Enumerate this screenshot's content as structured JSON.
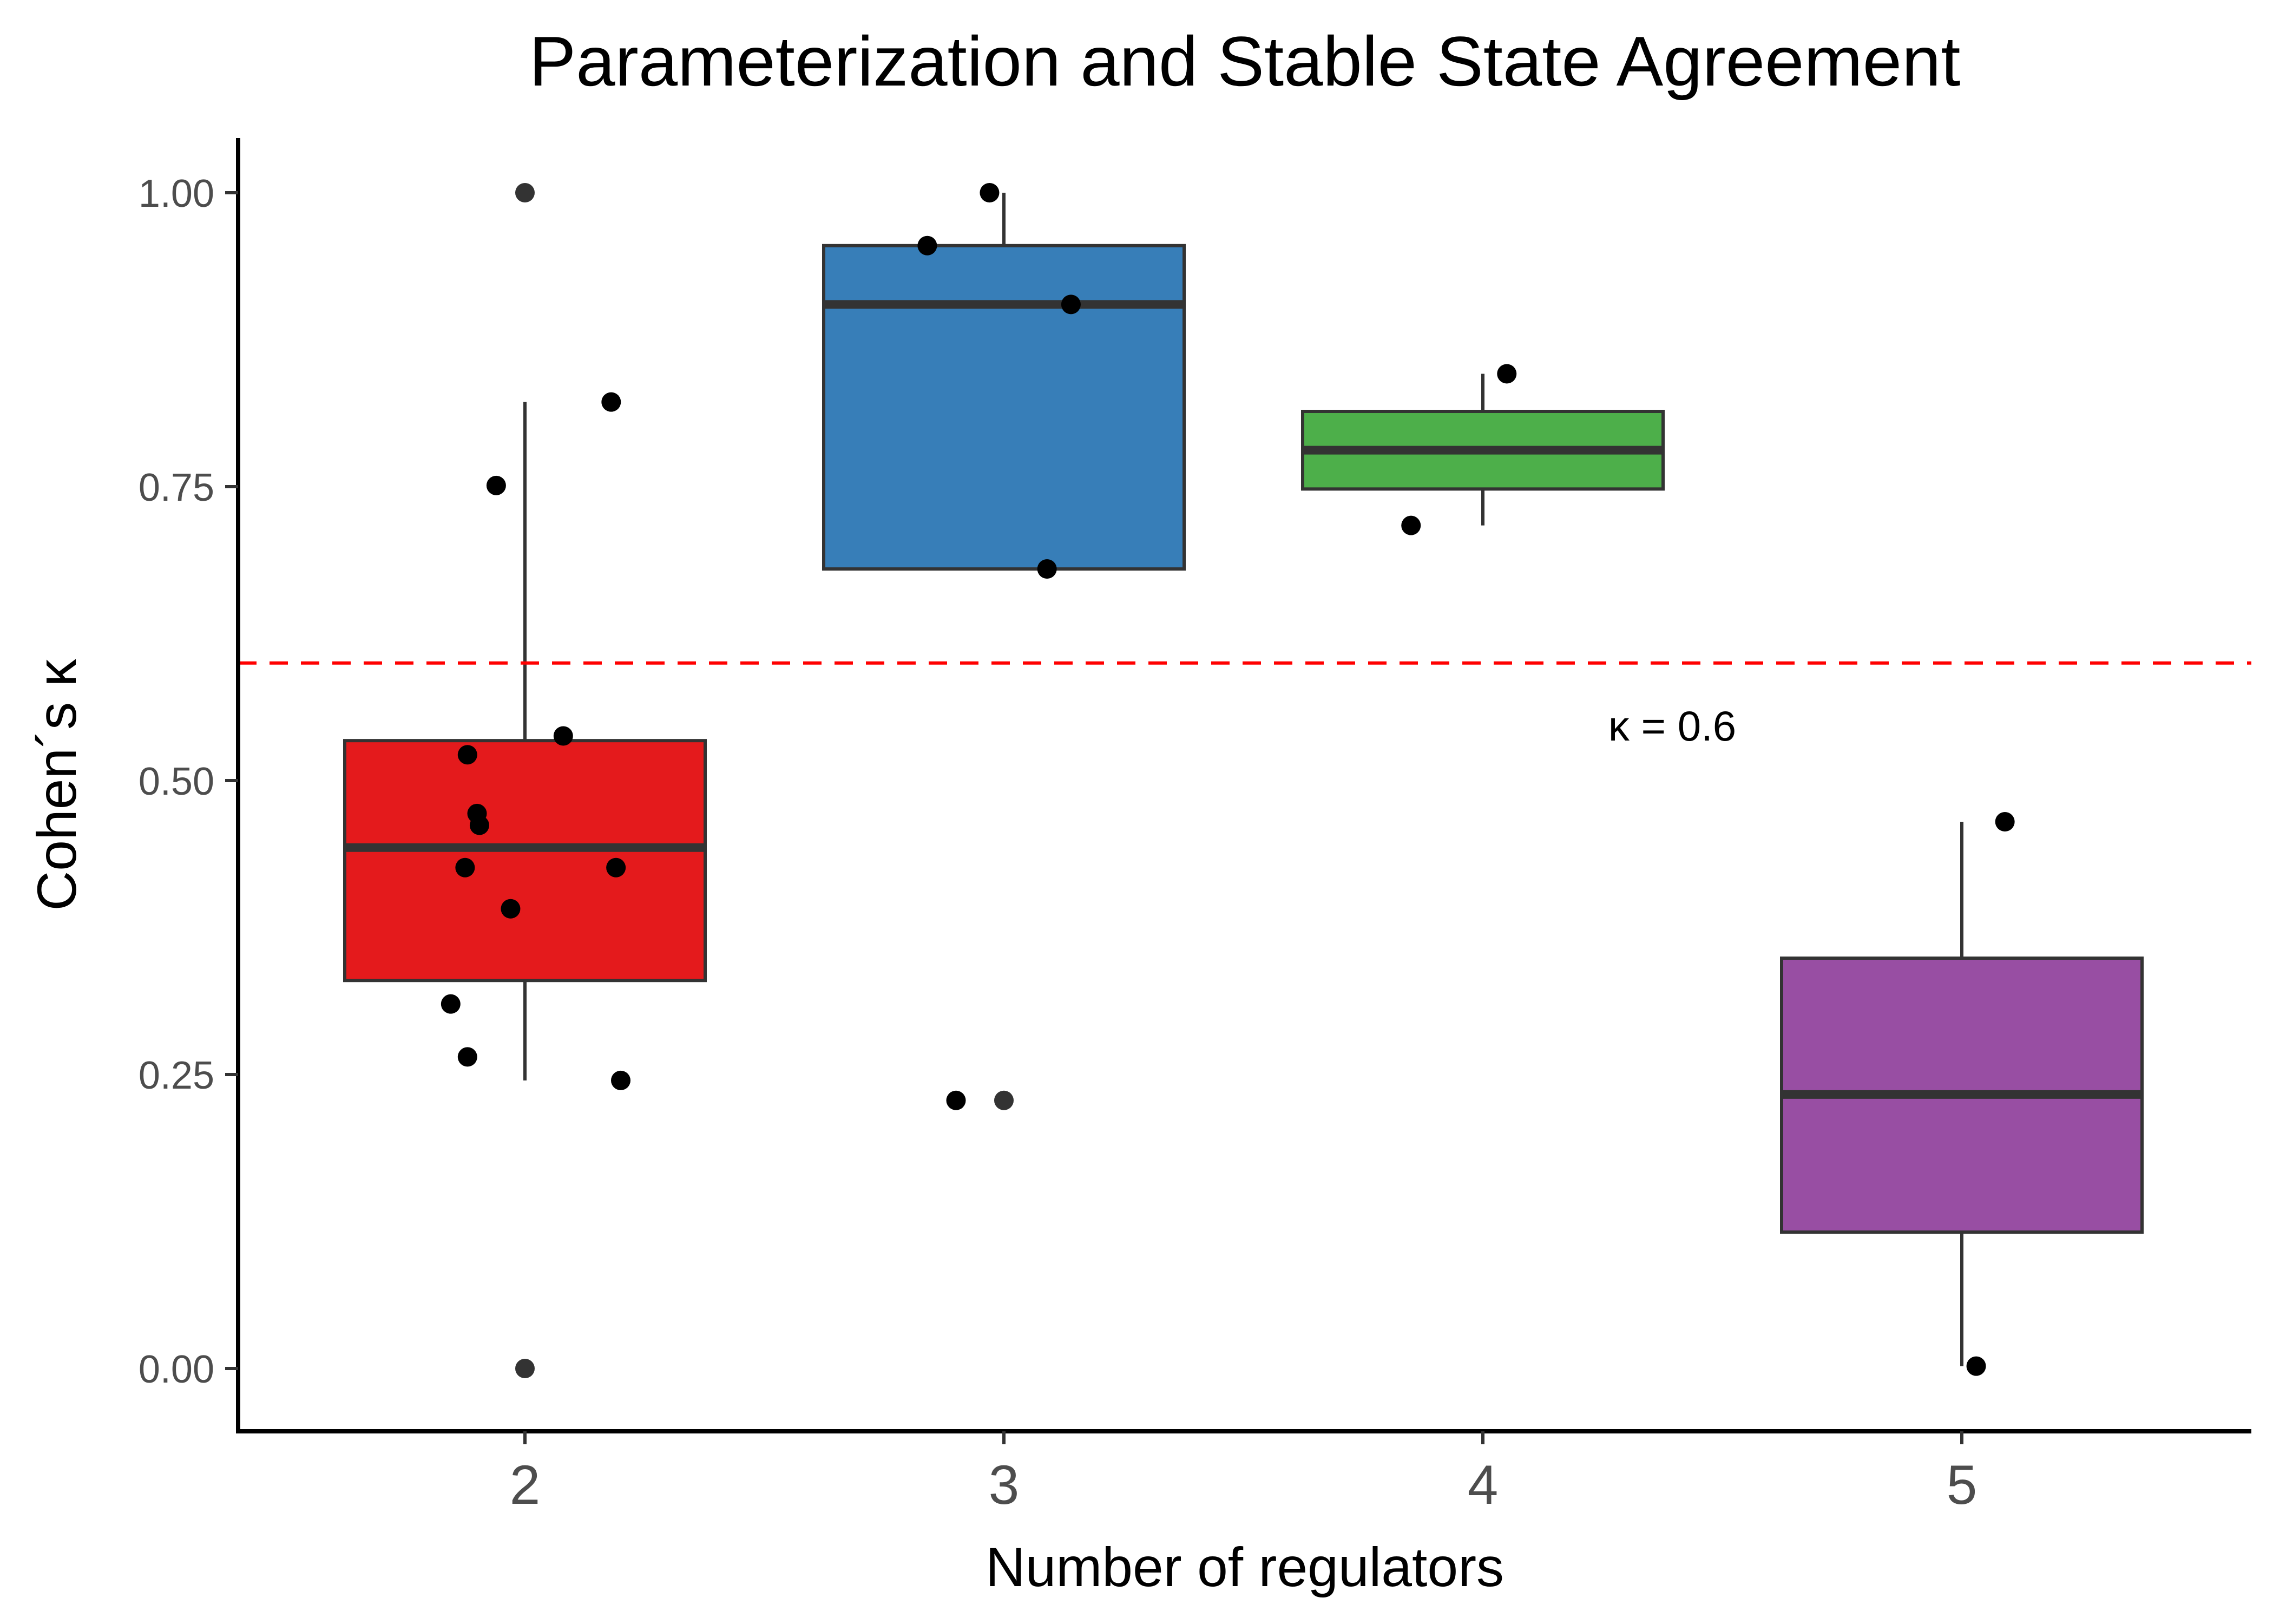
{
  "chart_data": {
    "type": "box",
    "title": "Parameterization and Stable State Agreement",
    "xlabel": "Number of regulators",
    "ylabel": "Cohen´s κ",
    "categories": [
      "2",
      "3",
      "4",
      "5"
    ],
    "ylim": [
      -0.05,
      1.05
    ],
    "yticks": [
      0.0,
      0.25,
      0.5,
      0.75,
      1.0
    ],
    "ytick_labels": [
      "0.00",
      "0.25",
      "0.50",
      "0.75",
      "1.00"
    ],
    "colors": [
      "#E41A1C",
      "#377EB8",
      "#4DAF4A",
      "#984EA3"
    ],
    "boxes": [
      {
        "category": "2",
        "whisker_low": 0.245,
        "q1": 0.33,
        "median": 0.443,
        "q3": 0.534,
        "whisker_high": 0.822,
        "outliers": [
          1.0,
          0.0
        ]
      },
      {
        "category": "3",
        "whisker_low": 0.68,
        "q1": 0.68,
        "median": 0.905,
        "q3": 0.955,
        "whisker_high": 1.0,
        "outliers": [
          0.228
        ]
      },
      {
        "category": "4",
        "whisker_low": 0.717,
        "q1": 0.748,
        "median": 0.781,
        "q3": 0.814,
        "whisker_high": 0.846,
        "outliers": []
      },
      {
        "category": "5",
        "whisker_low": 0.002,
        "q1": 0.116,
        "median": 0.233,
        "q3": 0.349,
        "whisker_high": 0.465,
        "outliers": []
      }
    ],
    "points": [
      {
        "x": 1.0,
        "y": 1.0,
        "outlier": true
      },
      {
        "x": 1.0,
        "y": 0.0,
        "outlier": true
      },
      {
        "x": 0.94,
        "y": 0.751
      },
      {
        "x": 1.18,
        "y": 0.822
      },
      {
        "x": 1.08,
        "y": 0.538
      },
      {
        "x": 0.88,
        "y": 0.522
      },
      {
        "x": 0.9,
        "y": 0.472
      },
      {
        "x": 0.905,
        "y": 0.462
      },
      {
        "x": 0.875,
        "y": 0.426
      },
      {
        "x": 1.19,
        "y": 0.426
      },
      {
        "x": 0.97,
        "y": 0.391
      },
      {
        "x": 0.845,
        "y": 0.31
      },
      {
        "x": 0.88,
        "y": 0.265
      },
      {
        "x": 1.2,
        "y": 0.245
      },
      {
        "x": 1.97,
        "y": 1.0
      },
      {
        "x": 1.84,
        "y": 0.955
      },
      {
        "x": 2.14,
        "y": 0.905
      },
      {
        "x": 2.09,
        "y": 0.68
      },
      {
        "x": 1.9,
        "y": 0.228
      },
      {
        "x": 2.0,
        "y": 0.228,
        "outlier": true
      },
      {
        "x": 3.05,
        "y": 0.846
      },
      {
        "x": 2.85,
        "y": 0.717
      },
      {
        "x": 4.09,
        "y": 0.465
      },
      {
        "x": 4.03,
        "y": 0.002
      }
    ],
    "reference_line": {
      "y": 0.6,
      "color": "#FF0000",
      "style": "dashed",
      "label": "κ = 0.6"
    },
    "grid": false,
    "legend": "none"
  }
}
